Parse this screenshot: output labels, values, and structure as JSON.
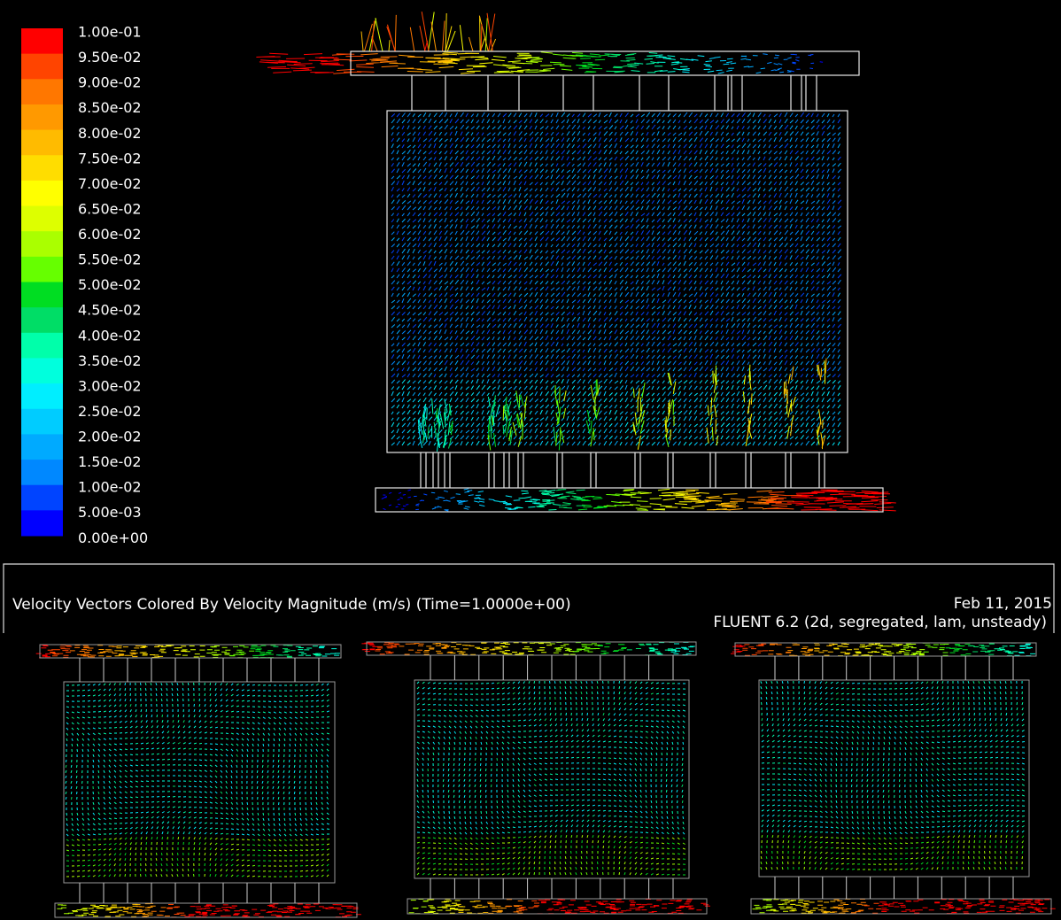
{
  "legend": {
    "labels": [
      "1.00e-01",
      "9.50e-02",
      "9.00e-02",
      "8.50e-02",
      "8.00e-02",
      "7.50e-02",
      "7.00e-02",
      "6.50e-02",
      "6.00e-02",
      "5.50e-02",
      "5.00e-02",
      "4.50e-02",
      "4.00e-02",
      "3.50e-02",
      "3.00e-02",
      "2.50e-02",
      "2.00e-02",
      "1.50e-02",
      "1.00e-02",
      "5.00e-03",
      "0.00e+00"
    ],
    "colors": [
      "#ff0000",
      "#ff4400",
      "#ff7700",
      "#ff9900",
      "#ffbb00",
      "#ffdd00",
      "#ffff00",
      "#ddff00",
      "#aaff00",
      "#66ff00",
      "#00dd22",
      "#00dd66",
      "#00ffaa",
      "#00ffdd",
      "#00eeff",
      "#00ccff",
      "#00aaff",
      "#0088ff",
      "#0044ff",
      "#0000ff"
    ]
  },
  "caption": {
    "title": "Velocity Vectors Colored By Velocity Magnitude (m/s)  (Time=1.0000e+00)",
    "date": "Feb 11, 2015",
    "version": "FLUENT 6.2 (2d, segregated, lam, unsteady)"
  }
}
